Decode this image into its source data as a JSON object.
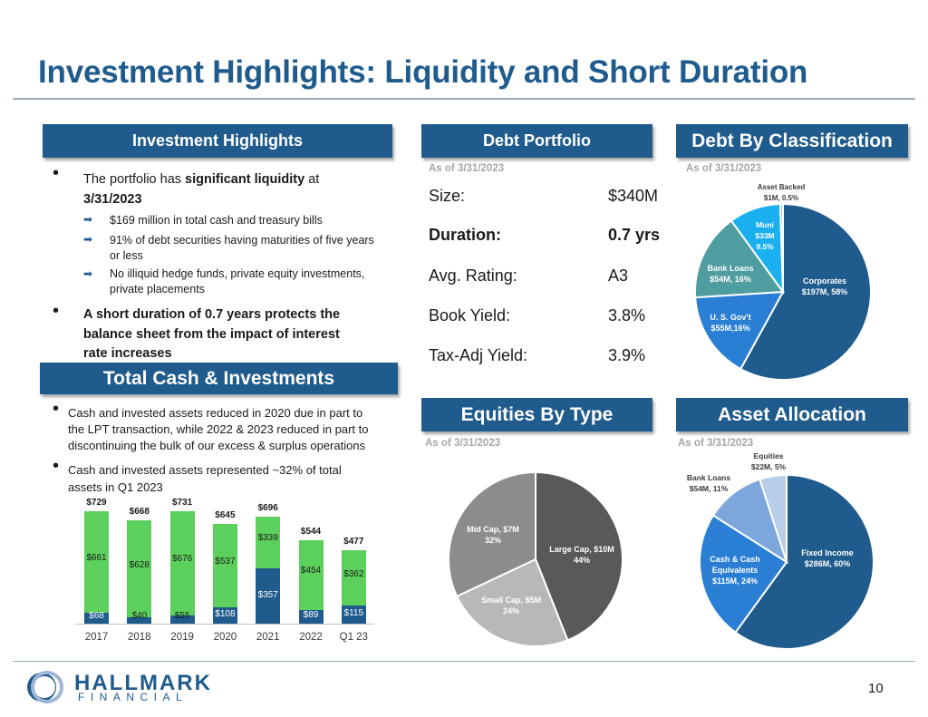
{
  "title": "Investment Highlights: Liquidity and Short Duration",
  "highlights": {
    "header": "Investment Highlights",
    "b1_pre": "The portfolio has ",
    "b1_bold": "significant liquidity",
    "b1_mid": " at",
    "b1_line2": "3/31/2023",
    "sub1": "$169 million in total cash and treasury bills",
    "sub2a": "91% of debt securities having maturities of five years",
    "sub2b": "or less",
    "sub3a": "No illiquid hedge funds, private equity investments,",
    "sub3b": "private placements",
    "b2_l1": "A short duration of 0.7 years protects the",
    "b2_l2": "balance sheet from the impact of interest",
    "b2_l3": "rate increases"
  },
  "total_cash": {
    "header": "Total Cash & Investments",
    "b1_l1": "Cash and invested assets reduced in 2020 due in part to",
    "b1_l2": "the LPT transaction, while 2022 & 2023 reduced in part to",
    "b1_l3": "discontinuing the bulk of our excess & surplus operations",
    "b2_l1": "Cash and invested assets represented ~32% of total",
    "b2_l2": "assets in Q1 2023"
  },
  "debt_portfolio": {
    "header": "Debt Portfolio",
    "as_of": "As of 3/31/2023",
    "rows": [
      {
        "label": "Size:",
        "value": "$340M"
      },
      {
        "label": "Duration:",
        "value": "0.7 yrs"
      },
      {
        "label": "Avg. Rating:",
        "value": "A3"
      },
      {
        "label": "Book Yield:",
        "value": "3.8%"
      },
      {
        "label": "Tax-Adj Yield:",
        "value": "3.9%"
      }
    ]
  },
  "debt_class": {
    "header": "Debt By Classification",
    "as_of": "As of 3/31/2023"
  },
  "equities": {
    "header": "Equities By Type",
    "as_of": "As of 3/31/2023"
  },
  "allocation": {
    "header": "Asset Allocation",
    "as_of": "As of 3/31/2023"
  },
  "colors": {
    "brand": "#1f5b8c",
    "bar_green": "#5cd05c",
    "bar_blue": "#1f5b8c"
  },
  "chart_data": [
    {
      "type": "bar",
      "stacked": true,
      "categories": [
        "2017",
        "2018",
        "2019",
        "2020",
        "2021",
        "2022",
        "Q1 23"
      ],
      "series": [
        {
          "values": [
            68,
            40,
            55,
            108,
            357,
            89,
            115
          ],
          "labels": [
            "$68",
            "$40",
            "$55",
            "$108",
            "$357",
            "$89",
            "$115"
          ]
        },
        {
          "values": [
            661,
            628,
            676,
            537,
            339,
            454,
            362
          ],
          "labels": [
            "$661",
            "$628",
            "$676",
            "$537",
            "$339",
            "$454",
            "$362"
          ]
        }
      ],
      "totals": [
        729,
        668,
        731,
        645,
        696,
        544,
        477
      ],
      "total_labels": [
        "$729",
        "$668",
        "$731",
        "$645",
        "$696",
        "$544",
        "$477"
      ]
    },
    {
      "type": "pie",
      "slices": [
        {
          "l1": "Corporates",
          "l2": "$197M, 58%",
          "value": 58,
          "color": "#1f5b8c"
        },
        {
          "l1": "U. S. Gov't",
          "l2": "$55M,16%",
          "value": 16,
          "color": "#2a7fd4"
        },
        {
          "l1": "Bank Loans",
          "l2": "$54M, 16%",
          "value": 16,
          "color": "#4f9da0"
        },
        {
          "l1": "Muni",
          "l2": "$33M",
          "l3": "9.5%",
          "value": 9.5,
          "color": "#1ab0f0"
        },
        {
          "l1": "Asset Backed",
          "l2": "$1M, 0.5%",
          "value": 0.5,
          "color": "#9fb4d6"
        }
      ]
    },
    {
      "type": "pie",
      "slices": [
        {
          "l1": "Large Cap, $10M",
          "l2": "44%",
          "value": 44,
          "color": "#595959"
        },
        {
          "l1": "Small Cap, $5M",
          "l2": "24%",
          "value": 24,
          "color": "#b8b8b8"
        },
        {
          "l1": "Mid Cap, $7M",
          "l2": "32%",
          "value": 32,
          "color": "#8c8c8c"
        }
      ]
    },
    {
      "type": "pie",
      "slices": [
        {
          "l1": "Fixed Income",
          "l2": "$286M, 60%",
          "value": 60,
          "color": "#1f5b8c"
        },
        {
          "l1": "Cash & Cash",
          "l2": "Equivalents",
          "l3": "$115M, 24%",
          "value": 24,
          "color": "#2a7fd4"
        },
        {
          "l1": "Bank Loans",
          "l2": "$54M, 11%",
          "value": 11,
          "color": "#7da7dc"
        },
        {
          "l1": "Equities",
          "l2": "$22M, 5%",
          "value": 5,
          "color": "#b8cdea"
        }
      ]
    }
  ],
  "footer": {
    "logo_line1": "HALLMARK",
    "logo_line2": "FINANCIAL",
    "page_number": "10"
  }
}
